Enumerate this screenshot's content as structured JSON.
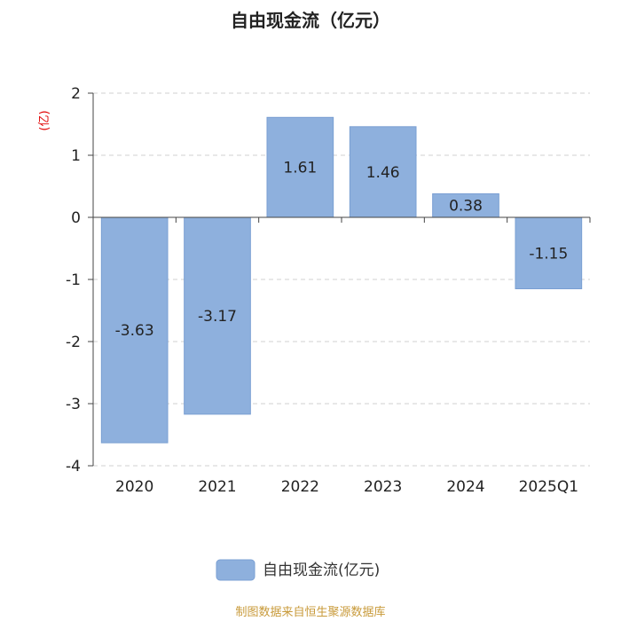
{
  "chart_data": {
    "type": "bar",
    "title": "自由现金流（亿元）",
    "ylabel": "(亿)",
    "categories": [
      "2020",
      "2021",
      "2022",
      "2023",
      "2024",
      "2025Q1"
    ],
    "series": [
      {
        "name": "自由现金流(亿元)",
        "values": [
          -3.63,
          -3.17,
          1.61,
          1.46,
          0.38,
          -1.15
        ]
      }
    ],
    "data_labels": [
      "-3.63",
      "-3.17",
      "1.61",
      "1.46",
      "0.38",
      "-1.15"
    ],
    "yticks": [
      "2",
      "1",
      "0",
      "-1",
      "-2",
      "-3",
      "-4"
    ],
    "ylim": [
      -4,
      2
    ],
    "grid": true,
    "legend_position": "bottom",
    "bar_color": "#8eb0dd",
    "bar_border_color": "#7a9fd3"
  },
  "footer": {
    "source": "制图数据来自恒生聚源数据库"
  }
}
